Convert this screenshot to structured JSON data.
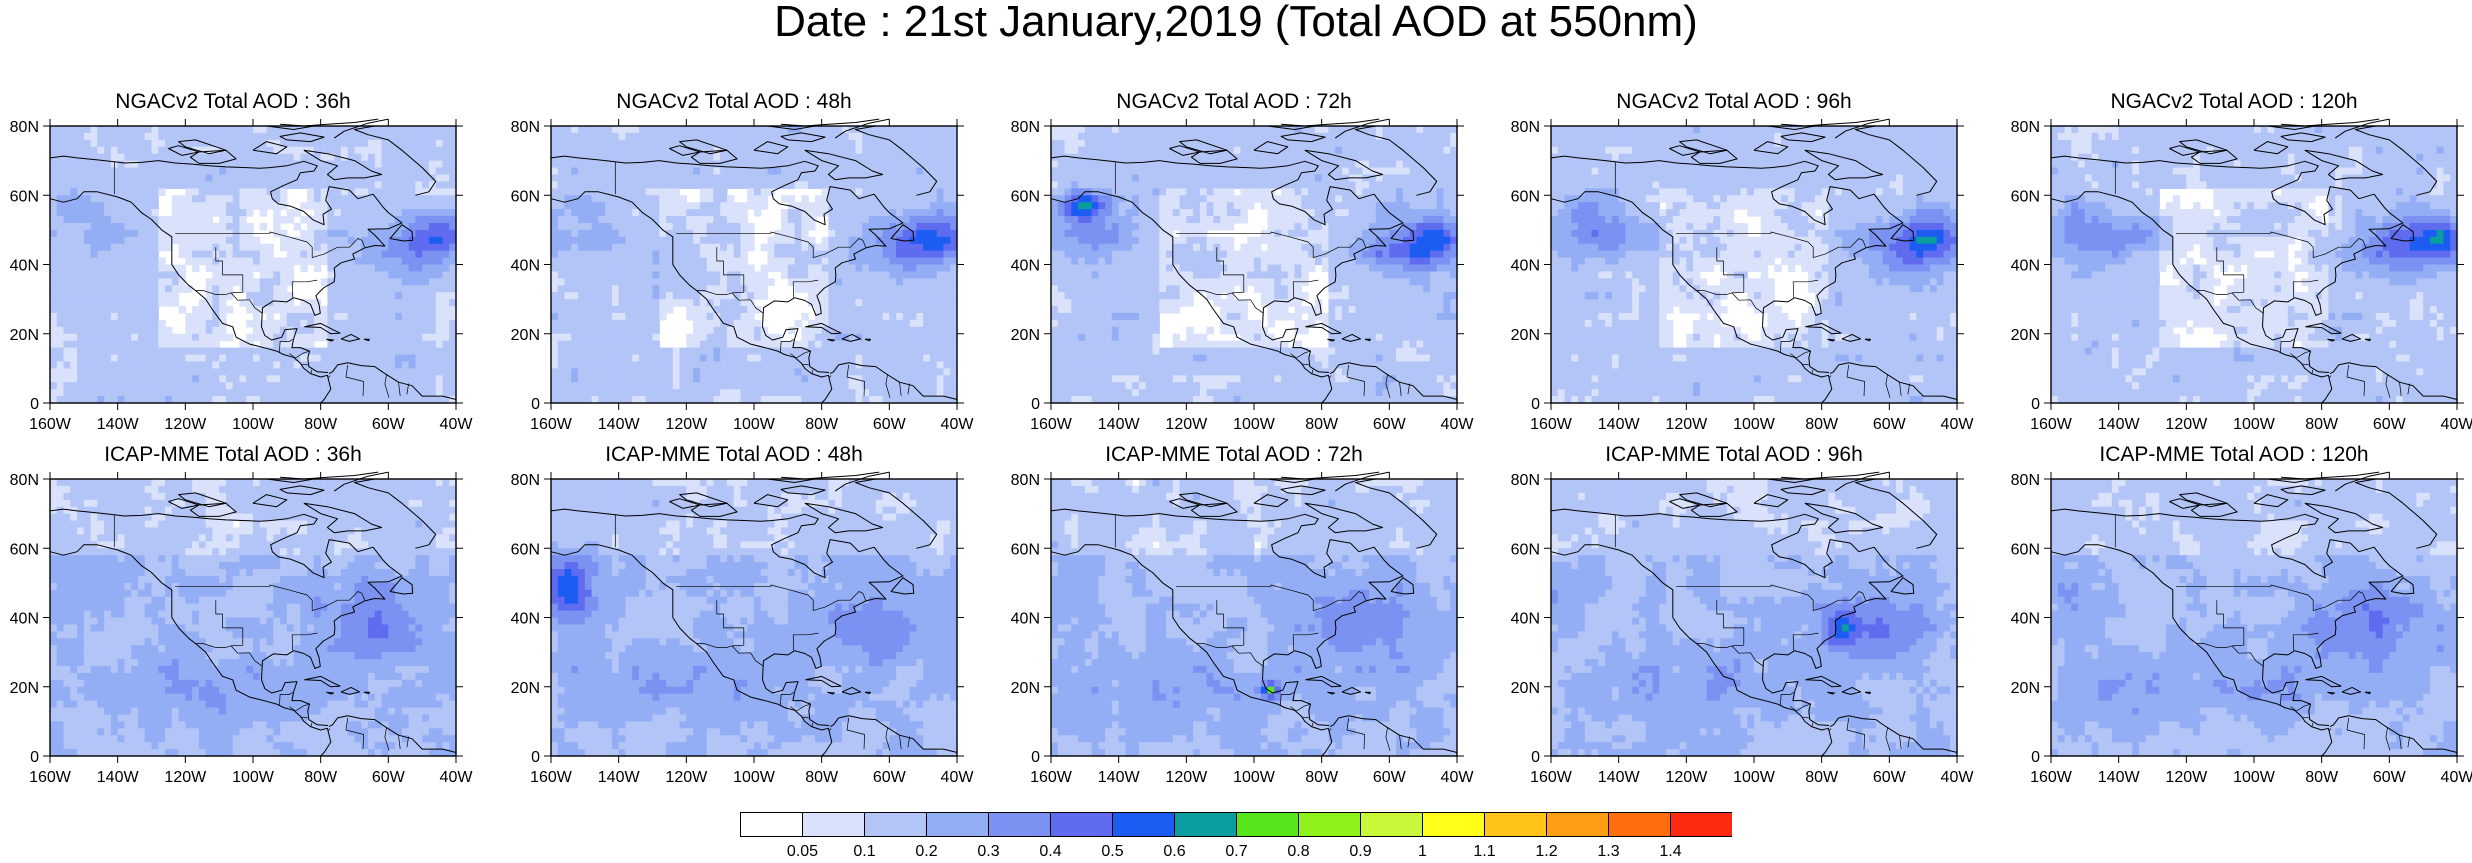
{
  "title": "Date : 21st January,2019 (Total AOD at 550nm)",
  "axes": {
    "x_ticks": [
      "160W",
      "140W",
      "120W",
      "100W",
      "80W",
      "60W",
      "40W"
    ],
    "y_ticks": [
      "0",
      "20N",
      "40N",
      "60N",
      "80N"
    ],
    "lon_range": [
      -160,
      -40
    ],
    "lat_range": [
      0,
      80
    ]
  },
  "panels": [
    {
      "title": "NGACv2 Total AOD : 36h",
      "model": "NGACv2",
      "lead": "36h"
    },
    {
      "title": "NGACv2 Total AOD : 48h",
      "model": "NGACv2",
      "lead": "48h"
    },
    {
      "title": "NGACv2 Total AOD : 72h",
      "model": "NGACv2",
      "lead": "72h"
    },
    {
      "title": "NGACv2 Total AOD : 96h",
      "model": "NGACv2",
      "lead": "96h"
    },
    {
      "title": "NGACv2 Total AOD : 120h",
      "model": "NGACv2",
      "lead": "120h"
    },
    {
      "title": "ICAP-MME Total AOD : 36h",
      "model": "ICAP-MME",
      "lead": "36h"
    },
    {
      "title": "ICAP-MME Total AOD : 48h",
      "model": "ICAP-MME",
      "lead": "48h"
    },
    {
      "title": "ICAP-MME Total AOD : 72h",
      "model": "ICAP-MME",
      "lead": "72h"
    },
    {
      "title": "ICAP-MME Total AOD : 96h",
      "model": "ICAP-MME",
      "lead": "96h"
    },
    {
      "title": "ICAP-MME Total AOD : 120h",
      "model": "ICAP-MME",
      "lead": "120h"
    }
  ],
  "colorbar": {
    "labels": [
      "0.05",
      "0.1",
      "0.2",
      "0.3",
      "0.4",
      "0.5",
      "0.6",
      "0.7",
      "0.8",
      "0.9",
      "1",
      "1.1",
      "1.2",
      "1.3",
      "1.4"
    ],
    "colors": [
      "#ffffff",
      "#d9e1fb",
      "#b3c4f7",
      "#93aef5",
      "#7b92f2",
      "#5f6cf0",
      "#1c5cf2",
      "#0a9ea0",
      "#55e61c",
      "#8ff21a",
      "#c9f73a",
      "#ffff1a",
      "#ffc419",
      "#ff9e12",
      "#ff6e0d",
      "#ff2a12"
    ]
  }
}
